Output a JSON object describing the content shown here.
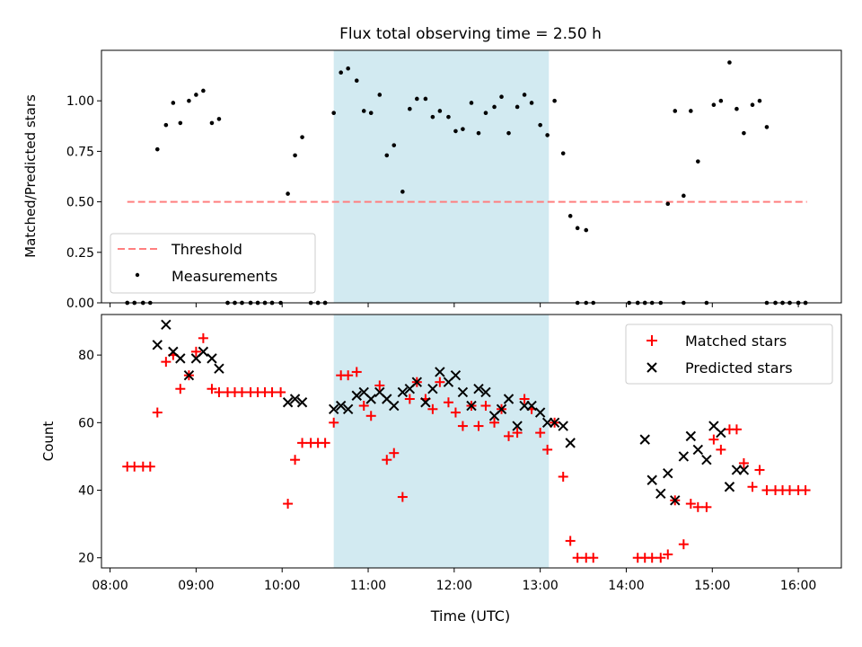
{
  "chart_data": {
    "title": "Flux total observing time = 2.50 h",
    "xlabel": "Time (UTC)",
    "x_tick_labels": [
      "08:00",
      "09:00",
      "10:00",
      "11:00",
      "12:00",
      "13:00",
      "14:00",
      "15:00",
      "16:00"
    ],
    "xlim_hours": [
      7.9,
      16.5
    ],
    "highlight_span": {
      "start": "10:36",
      "end": "13:06",
      "color": "#add8e6"
    },
    "panels": [
      {
        "type": "scatter",
        "ylabel": "Matched/Predicted stars",
        "ylim": [
          0,
          1.25
        ],
        "y_ticks": [
          0.0,
          0.25,
          0.5,
          0.75,
          1.0
        ],
        "y_tick_labels": [
          "0.00",
          "0.25",
          "0.50",
          "0.75",
          "1.00"
        ],
        "legend": {
          "position": "lower-left"
        },
        "series": [
          {
            "name": "Threshold",
            "kind": "line",
            "color": "#ff7f7f",
            "dash": true,
            "x": [
              "08:12",
              "16:06"
            ],
            "y": [
              0.5,
              0.5
            ]
          },
          {
            "name": "Measurements",
            "kind": "dot",
            "color": "#000000",
            "x": [
              "08:12",
              "08:17",
              "08:23",
              "08:28",
              "08:33",
              "08:39",
              "08:44",
              "08:49",
              "08:55",
              "09:00",
              "09:05",
              "09:11",
              "09:16",
              "09:22",
              "09:27",
              "09:32",
              "09:38",
              "09:43",
              "09:48",
              "09:53",
              "09:59",
              "10:04",
              "10:09",
              "10:14",
              "10:20",
              "10:25",
              "10:30",
              "10:36",
              "10:41",
              "10:46",
              "10:52",
              "10:57",
              "11:02",
              "11:08",
              "11:13",
              "11:18",
              "11:24",
              "11:29",
              "11:34",
              "11:40",
              "11:45",
              "11:50",
              "11:56",
              "12:01",
              "12:06",
              "12:12",
              "12:17",
              "12:22",
              "12:28",
              "12:33",
              "12:38",
              "12:44",
              "12:49",
              "12:54",
              "13:00",
              "13:05",
              "13:10",
              "13:16",
              "13:21",
              "13:26",
              "13:32",
              "13:37",
              "14:08",
              "14:13",
              "14:18",
              "14:24",
              "14:29",
              "14:34",
              "14:40",
              "14:45",
              "14:50",
              "14:56",
              "15:01",
              "15:06",
              "15:12",
              "15:17",
              "15:22",
              "15:28",
              "15:33",
              "15:38",
              "15:44",
              "15:49",
              "15:54",
              "16:00",
              "16:05",
              "08:12",
              "08:17",
              "08:23",
              "09:22",
              "09:27",
              "09:32",
              "09:38",
              "09:43",
              "09:48",
              "09:53",
              "10:20",
              "10:25",
              "10:30",
              "13:26",
              "13:32",
              "14:02",
              "14:08",
              "14:13",
              "14:40",
              "15:38",
              "15:44",
              "15:49",
              "15:54",
              "16:00",
              "16:05"
            ],
            "y": [
              0,
              0,
              0,
              0,
              0.76,
              0.88,
              0.99,
              0.89,
              1.0,
              1.03,
              1.05,
              0.89,
              0.91,
              0,
              0,
              0,
              0,
              0,
              0,
              0,
              0,
              0.54,
              0.73,
              0.82,
              0,
              0,
              0,
              0.94,
              1.14,
              1.16,
              1.1,
              0.95,
              0.94,
              1.03,
              0.73,
              0.78,
              0.55,
              0.96,
              1.01,
              1.01,
              0.92,
              0.95,
              0.92,
              0.85,
              0.86,
              0.99,
              0.84,
              0.94,
              0.97,
              1.02,
              0.84,
              0.97,
              1.03,
              0.99,
              0.88,
              0.83,
              1.0,
              0.74,
              0.43,
              0.37,
              0.36,
              0,
              0,
              0,
              0,
              0,
              0.49,
              0.95,
              0.53,
              0.95,
              0.7,
              0,
              0.98,
              1.0,
              1.19,
              0.96,
              0.84,
              0.98,
              1.0,
              0.87,
              0,
              0,
              0,
              0,
              0,
              0,
              0,
              0,
              0,
              0,
              0,
              0,
              0,
              0,
              0,
              0,
              0,
              0,
              0,
              0,
              0,
              0,
              0,
              0,
              0,
              0,
              0,
              0,
              0,
              0
            ]
          }
        ]
      },
      {
        "type": "scatter",
        "ylabel": "Count",
        "ylim": [
          17,
          92
        ],
        "y_ticks": [
          20,
          40,
          60,
          80
        ],
        "y_tick_labels": [
          "20",
          "40",
          "60",
          "80"
        ],
        "legend": {
          "position": "upper-right"
        },
        "series": [
          {
            "name": "Matched stars",
            "marker": "plus",
            "color": "#ff0000",
            "x": [
              "08:12",
              "08:17",
              "08:23",
              "08:28",
              "08:33",
              "08:39",
              "08:44",
              "08:49",
              "08:55",
              "09:00",
              "09:05",
              "09:11",
              "09:16",
              "09:22",
              "09:27",
              "09:32",
              "09:38",
              "09:43",
              "09:48",
              "09:53",
              "09:59",
              "10:04",
              "10:09",
              "10:14",
              "10:20",
              "10:25",
              "10:30",
              "10:36",
              "10:41",
              "10:46",
              "10:52",
              "10:57",
              "11:02",
              "11:08",
              "11:13",
              "11:18",
              "11:24",
              "11:29",
              "11:34",
              "11:40",
              "11:45",
              "11:50",
              "11:56",
              "12:01",
              "12:06",
              "12:12",
              "12:17",
              "12:22",
              "12:28",
              "12:33",
              "12:38",
              "12:44",
              "12:49",
              "12:54",
              "13:00",
              "13:05",
              "13:10",
              "13:16",
              "13:21",
              "13:26",
              "13:32",
              "13:37",
              "14:08",
              "14:13",
              "14:18",
              "14:24",
              "14:29",
              "14:34",
              "14:40",
              "14:45",
              "14:50",
              "14:56",
              "15:01",
              "15:06",
              "15:12",
              "15:17",
              "15:22",
              "15:28",
              "15:33",
              "15:38",
              "15:44",
              "15:49",
              "15:54",
              "16:00",
              "16:05"
            ],
            "y": [
              47,
              47,
              47,
              47,
              63,
              78,
              80,
              70,
              74,
              81,
              85,
              70,
              69,
              69,
              69,
              69,
              69,
              69,
              69,
              69,
              69,
              36,
              49,
              54,
              54,
              54,
              54,
              60,
              74,
              74,
              75,
              65,
              62,
              71,
              49,
              51,
              38,
              67,
              72,
              67,
              64,
              72,
              66,
              63,
              59,
              65,
              59,
              65,
              60,
              64,
              56,
              57,
              67,
              64,
              57,
              52,
              60,
              44,
              25,
              20,
              20,
              20,
              20,
              20,
              20,
              20,
              21,
              37,
              24,
              36,
              35,
              35,
              55,
              52,
              58,
              58,
              48,
              41,
              46,
              40,
              40,
              40,
              40,
              40,
              40
            ]
          },
          {
            "name": "Predicted stars",
            "marker": "x",
            "color": "#000000",
            "x": [
              "08:33",
              "08:39",
              "08:44",
              "08:49",
              "08:55",
              "09:00",
              "09:05",
              "09:11",
              "09:16",
              "10:04",
              "10:09",
              "10:14",
              "10:36",
              "10:41",
              "10:46",
              "10:52",
              "10:57",
              "11:02",
              "11:08",
              "11:13",
              "11:18",
              "11:24",
              "11:29",
              "11:34",
              "11:40",
              "11:45",
              "11:50",
              "11:56",
              "12:01",
              "12:06",
              "12:12",
              "12:17",
              "12:22",
              "12:28",
              "12:33",
              "12:38",
              "12:44",
              "12:49",
              "12:54",
              "13:00",
              "13:05",
              "13:10",
              "13:16",
              "13:21",
              "14:13",
              "14:18",
              "14:24",
              "14:29",
              "14:34",
              "14:40",
              "14:45",
              "14:50",
              "14:56",
              "15:01",
              "15:06",
              "15:12",
              "15:17",
              "15:22"
            ],
            "y": [
              83,
              89,
              81,
              79,
              74,
              79,
              81,
              79,
              76,
              66,
              67,
              66,
              64,
              65,
              64,
              68,
              69,
              67,
              69,
              67,
              65,
              69,
              70,
              72,
              66,
              70,
              75,
              72,
              74,
              69,
              65,
              70,
              69,
              62,
              64,
              67,
              59,
              65,
              65,
              63,
              60,
              60,
              59,
              54,
              55,
              43,
              39,
              45,
              37,
              50,
              56,
              52,
              49,
              59,
              57,
              41,
              46,
              46
            ]
          }
        ]
      }
    ]
  }
}
